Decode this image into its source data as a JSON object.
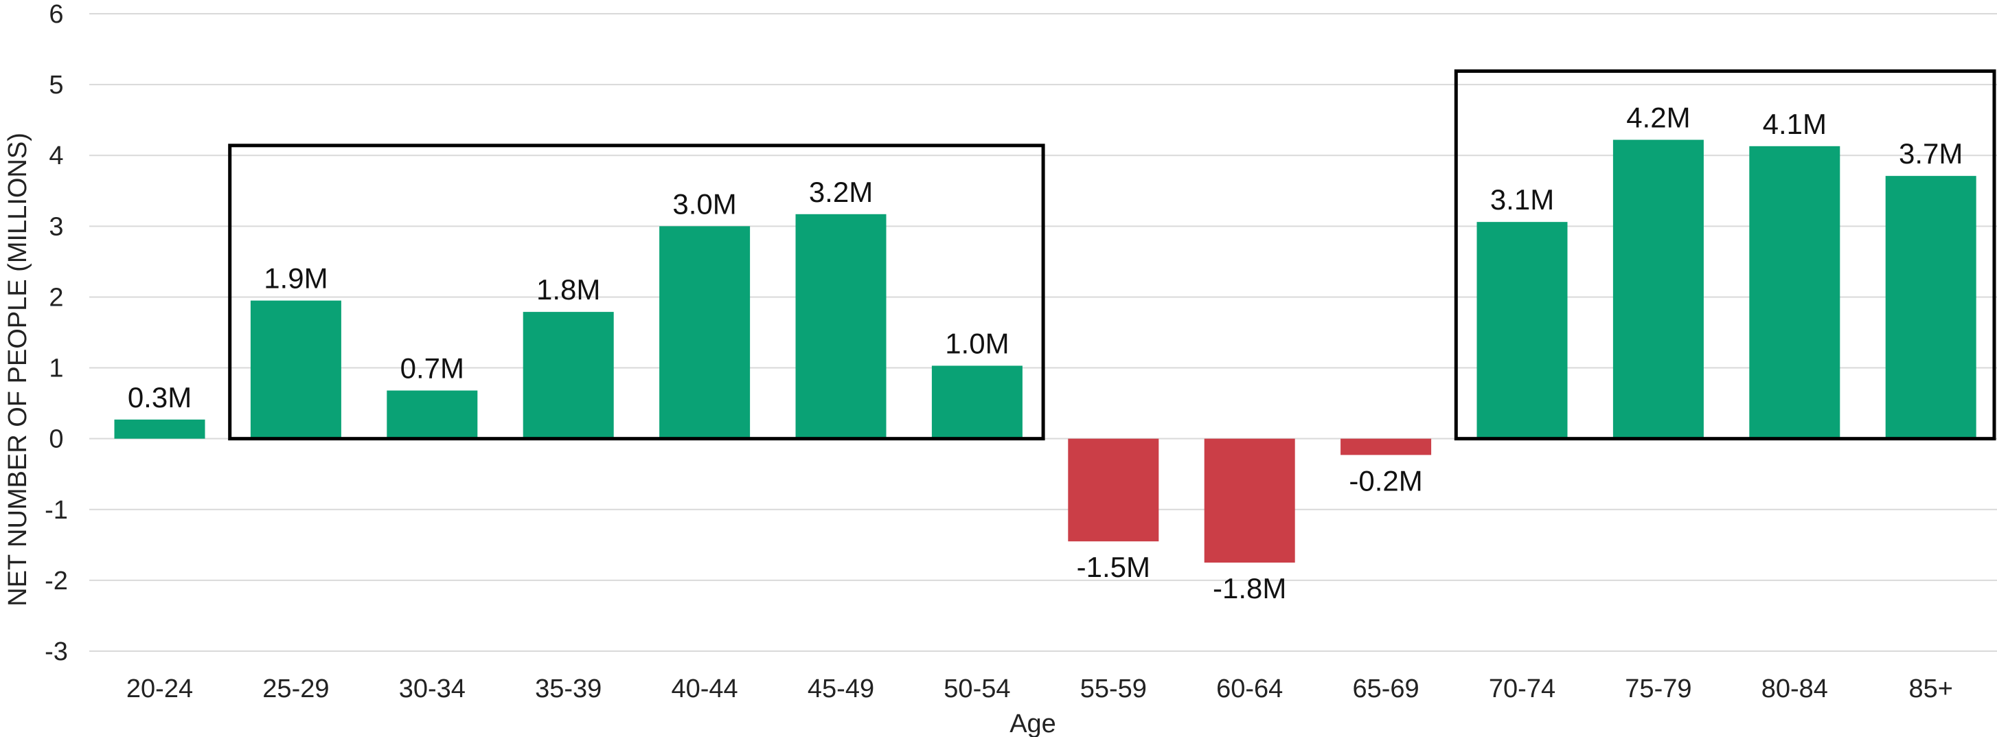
{
  "chart_data": {
    "type": "bar",
    "title": "",
    "xlabel": "Age",
    "ylabel": "NET NUMBER OF PEOPLE (MILLIONS)",
    "ylim": [
      -3,
      6
    ],
    "yticks": [
      -3,
      -2,
      -1,
      0,
      1,
      2,
      3,
      4,
      5,
      6
    ],
    "grid": true,
    "categories": [
      "20-24",
      "25-29",
      "30-34",
      "35-39",
      "40-44",
      "45-49",
      "50-54",
      "55-59",
      "60-64",
      "65-69",
      "70-74",
      "75-79",
      "80-84",
      "85+"
    ],
    "values": [
      0.27,
      1.95,
      0.68,
      1.79,
      3.0,
      3.17,
      1.03,
      -1.45,
      -1.75,
      -0.23,
      3.06,
      4.22,
      4.13,
      3.71
    ],
    "data_labels": [
      "0.3M",
      "1.9M",
      "0.7M",
      "1.8M",
      "3.0M",
      "3.2M",
      "1.0M",
      "-1.5M",
      "-1.8M",
      "-0.2M",
      "3.1M",
      "4.2M",
      "4.1M",
      "3.7M"
    ],
    "highlight_groups": [
      {
        "from": "25-29",
        "to": "50-54"
      },
      {
        "from": "70-74",
        "to": "85+"
      }
    ],
    "colors": {
      "positive": "#0aa275",
      "negative": "#cb3e47",
      "grid": "#d9d9d9",
      "box": "#000000"
    }
  }
}
